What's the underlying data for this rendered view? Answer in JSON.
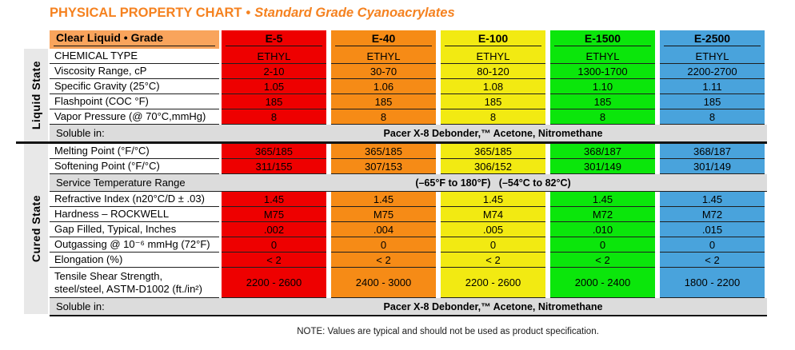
{
  "title": {
    "main": "PHYSICAL PROPERTY CHART",
    "separator": "•",
    "subtitle": "Standard Grade Cyanoacrylates"
  },
  "palette": {
    "title_orange": "#F58220",
    "corner_header_bg": "#F9A45C",
    "e5_red": "#EE0000",
    "e40_orange": "#F68B16",
    "e100_yellow": "#F2EA12",
    "e1500_green": "#0BE60B",
    "e2500_blue": "#49A3DC",
    "gray_band": "#DCDCDC",
    "sidebar_gray": "#E8E8E8"
  },
  "sections": {
    "liquid": "Liquid State",
    "cured": "Cured State"
  },
  "header": {
    "corner": "Clear Liquid • Grade",
    "grades": [
      "E-5",
      "E-40",
      "E-100",
      "E-1500",
      "E-2500"
    ]
  },
  "liquid_rows": [
    {
      "label": "CHEMICAL TYPE",
      "values": [
        "ETHYL",
        "ETHYL",
        "ETHYL",
        "ETHYL",
        "ETHYL"
      ]
    },
    {
      "label": "Viscosity Range, cP",
      "values": [
        "2-10",
        "30-70",
        "80-120",
        "1300-1700",
        "2200-2700"
      ]
    },
    {
      "label": "Specific Gravity (25°C)",
      "values": [
        "1.05",
        "1.06",
        "1.08",
        "1.10",
        "1.11"
      ]
    },
    {
      "label": "Flashpoint (COC °F)",
      "values": [
        "185",
        "185",
        "185",
        "185",
        "185"
      ]
    },
    {
      "label": "Vapor Pressure (@ 70°C,mmHg)",
      "values": [
        "8",
        "8",
        "8",
        "8",
        "8"
      ]
    }
  ],
  "soluble_liquid": {
    "label": "Soluble in:",
    "value": "Pacer X-8 Debonder,™ Acetone, Nitromethane"
  },
  "cured_rows_a": [
    {
      "label": "Melting Point (°F/°C)",
      "values": [
        "365/185",
        "365/185",
        "365/185",
        "368/187",
        "368/187"
      ]
    },
    {
      "label": "Softening Point (°F/°C)",
      "values": [
        "311/155",
        "307/153",
        "306/152",
        "301/149",
        "301/149"
      ]
    }
  ],
  "service_temp": {
    "label": "Service Temperature Range",
    "value": "(–65°F to 180°F)   (–54°C to 82°C)"
  },
  "cured_rows_b": [
    {
      "label": "Refractive Index (n20°C/D ± .03)",
      "values": [
        "1.45",
        "1.45",
        "1.45",
        "1.45",
        "1.45"
      ]
    },
    {
      "label": "Hardness – ROCKWELL",
      "values": [
        "M75",
        "M75",
        "M74",
        "M72",
        "M72"
      ]
    },
    {
      "label": "Gap Filled, Typical, Inches",
      "values": [
        ".002",
        ".004",
        ".005",
        ".010",
        ".015"
      ]
    },
    {
      "label": "Outgassing @ 10⁻⁶ mmHg (72°F)",
      "values": [
        "0",
        "0",
        "0",
        "0",
        "0"
      ]
    },
    {
      "label": "Elongation (%)",
      "values": [
        "< 2",
        "< 2",
        "< 2",
        "< 2",
        "< 2"
      ]
    }
  ],
  "tensile": {
    "label_line1": "Tensile Shear Strength,",
    "label_line2": "steel/steel, ASTM-D1002 (ft./in²)",
    "values": [
      "2200 - 2600",
      "2400 - 3000",
      "2200 - 2600",
      "2000 - 2400",
      "1800 - 2200"
    ]
  },
  "soluble_cured": {
    "label": "Soluble in:",
    "value": "Pacer X-8 Debonder,™ Acetone, Nitromethane"
  },
  "note": "NOTE: Values are typical and should not be used as product specification."
}
